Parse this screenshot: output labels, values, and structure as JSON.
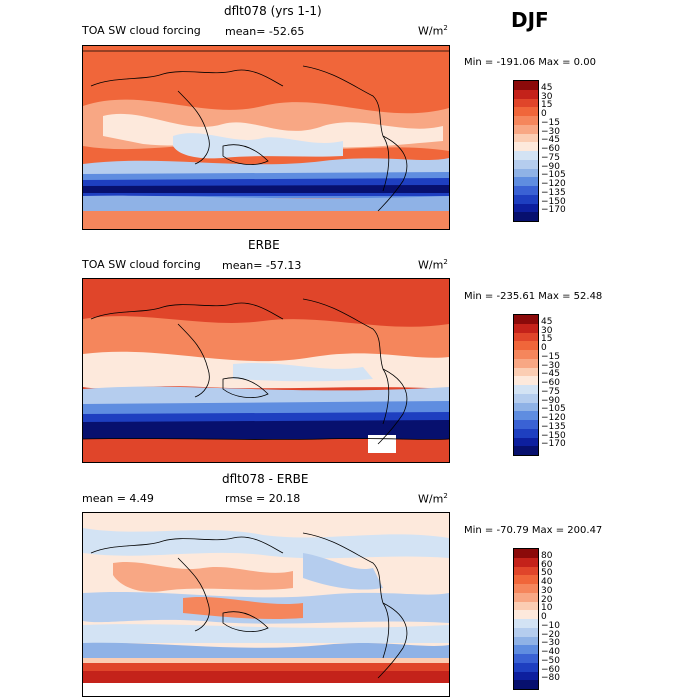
{
  "season": "DJF",
  "panels": [
    {
      "title": "dflt078 (yrs 1-1)",
      "left_label": "TOA SW cloud forcing",
      "mean_label": "mean= -52.65",
      "units": "W/m",
      "units_exp": "2",
      "minmax": "Min = -191.06 Max =    0.00",
      "colorbar_levels": [
        "45",
        "30",
        "15",
        "0",
        "−15",
        "−30",
        "−45",
        "−60",
        "−75",
        "−90",
        "−105",
        "−120",
        "−135",
        "−150",
        "−170"
      ],
      "colorbar_colors": [
        "#8b0a0a",
        "#c4221a",
        "#e0452a",
        "#f0663a",
        "#f5865c",
        "#f8a784",
        "#fbcdb3",
        "#fde9dc",
        "#d3e3f4",
        "#b5cdee",
        "#8fb2e6",
        "#5f8de0",
        "#3a62d4",
        "#1e3fc0",
        "#0d1f9e",
        "#07106e"
      ]
    },
    {
      "title": "ERBE",
      "left_label": "TOA SW cloud forcing",
      "mean_label": "mean= -57.13",
      "units": "W/m",
      "units_exp": "2",
      "minmax": "Min = -235.61 Max =  52.48",
      "colorbar_levels": [
        "45",
        "30",
        "15",
        "0",
        "−15",
        "−30",
        "−45",
        "−60",
        "−75",
        "−90",
        "−105",
        "−120",
        "−135",
        "−150",
        "−170"
      ],
      "colorbar_colors": [
        "#8b0a0a",
        "#c4221a",
        "#e0452a",
        "#f0663a",
        "#f5865c",
        "#f8a784",
        "#fbcdb3",
        "#fde9dc",
        "#d3e3f4",
        "#b5cdee",
        "#8fb2e6",
        "#5f8de0",
        "#3a62d4",
        "#1e3fc0",
        "#0d1f9e",
        "#07106e"
      ]
    },
    {
      "title": "dflt078 - ERBE",
      "left_label": "mean =    4.49",
      "mean_label": "rmse =  20.18",
      "units": "W/m",
      "units_exp": "2",
      "minmax": "Min = -70.79 Max = 200.47",
      "colorbar_levels": [
        "80",
        "60",
        "50",
        "40",
        "30",
        "20",
        "10",
        "0",
        "−10",
        "−20",
        "−30",
        "−40",
        "−50",
        "−60",
        "−80"
      ],
      "colorbar_colors": [
        "#8b0a0a",
        "#c4221a",
        "#e0452a",
        "#f0663a",
        "#f5865c",
        "#f8a784",
        "#fbcdb3",
        "#fde9dc",
        "#d3e3f4",
        "#b5cdee",
        "#8fb2e6",
        "#5f8de0",
        "#3a62d4",
        "#1e3fc0",
        "#0d1f9e",
        "#07106e"
      ]
    }
  ]
}
